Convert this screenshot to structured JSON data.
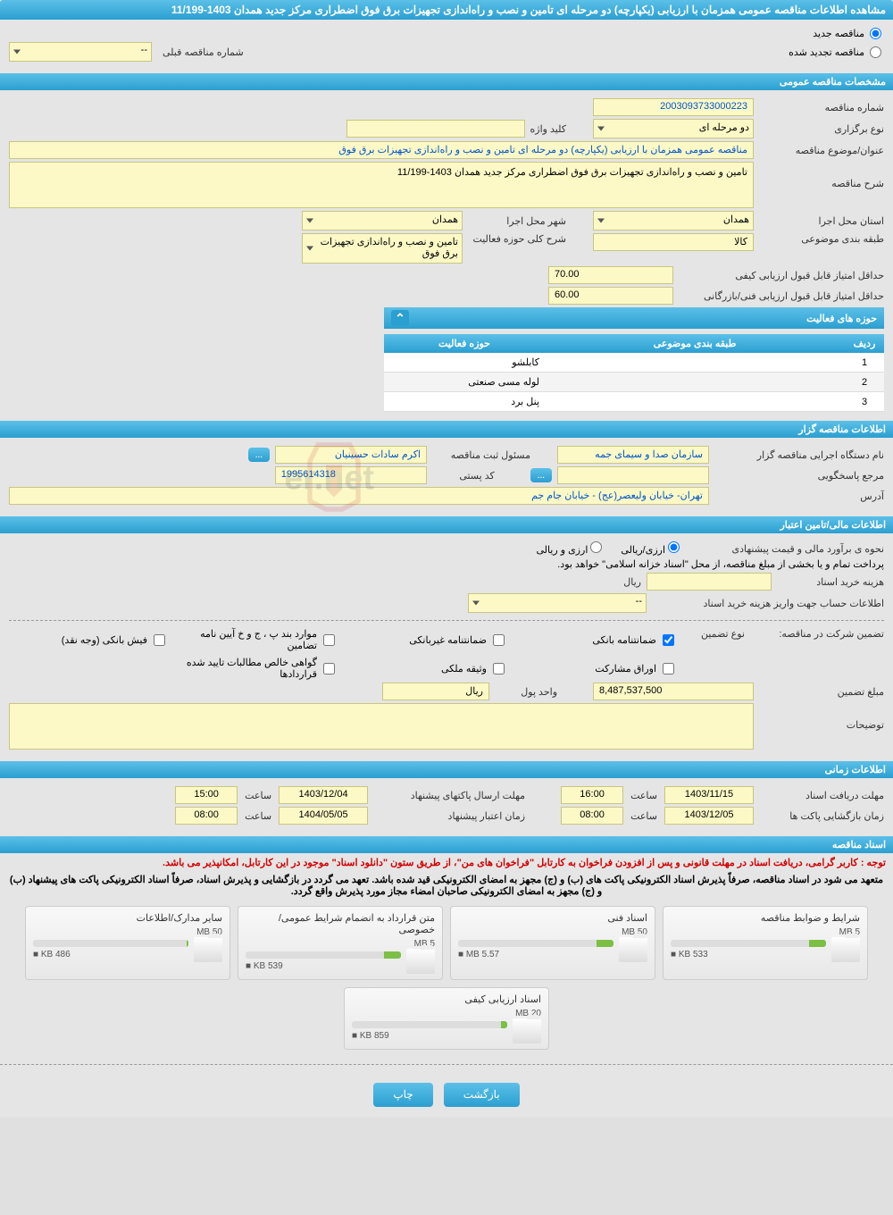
{
  "header": {
    "title": "مشاهده اطلاعات مناقصه عمومی همزمان با ارزیابی (یکپارچه) دو مرحله ای تامین و نصب و راه‌اندازی تجهیزات برق فوق اضطراری مرکز جدید همدان 1403-11/199"
  },
  "tender_type": {
    "new_label": "مناقصه جدید",
    "renewed_label": "مناقصه تجدید شده",
    "prev_number_label": "شماره مناقصه قبلی",
    "prev_number_value": "--"
  },
  "sections": {
    "general": "مشخصات مناقصه عمومی",
    "organizer": "اطلاعات مناقصه گزار",
    "financial": "اطلاعات مالی/تامین اعتبار",
    "timing": "اطلاعات زمانی",
    "documents": "اسناد مناقصه"
  },
  "general": {
    "tender_no_label": "شماره مناقصه",
    "tender_no": "2003093733000223",
    "type_label": "نوع برگزاری",
    "type_value": "دو مرحله ای",
    "keyword_label": "کلید واژه",
    "keyword_value": "",
    "subject_label": "عنوان/موضوع مناقصه",
    "subject_value": "مناقصه عمومی همزمان با ارزیابی (یکپارچه) دو مرحله ای تامین و نصب و راه‌اندازی تجهیزات برق فوق",
    "desc_label": "شرح مناقصه",
    "desc_value": "تامین و نصب و راه‌اندازی تجهیزات برق فوق اضطراری مرکز جدید همدان 1403-11/199",
    "province_label": "استان محل اجرا",
    "province_value": "همدان",
    "city_label": "شهر محل اجرا",
    "city_value": "همدان",
    "category_label": "طبقه بندی موضوعی",
    "category_value": "کالا",
    "activity_desc_label": "شرح کلی حوزه فعالیت",
    "activity_desc_value": "تامین و نصب و راه‌اندازی تجهیزات برق فوق",
    "quality_score_label": "حداقل امتیاز قابل قبول ارزیابی کیفی",
    "quality_score": "70.00",
    "tech_score_label": "حداقل امتیاز قابل قبول ارزیابی فنی/بازرگانی",
    "tech_score": "60.00"
  },
  "activity_table": {
    "title": "حوزه های فعالیت",
    "col_row": "ردیف",
    "col_category": "طبقه بندی موضوعی",
    "col_field": "حوزه فعالیت",
    "rows": [
      {
        "n": "1",
        "cat": "",
        "field": "کابلشو"
      },
      {
        "n": "2",
        "cat": "",
        "field": "لوله مسی صنعتی"
      },
      {
        "n": "3",
        "cat": "",
        "field": "پنل برد"
      }
    ]
  },
  "organizer": {
    "org_label": "نام دستگاه اجرایی مناقصه گزار",
    "org_value": "سازمان صدا و سیمای جمه",
    "manager_label": "مسئول ثبت مناقصه",
    "manager_value": "اکرم سادات حسینیان",
    "responder_label": "مرجع پاسخگویی",
    "responder_value": "",
    "postal_label": "کد پستی",
    "postal_value": "1995614318",
    "address_label": "آدرس",
    "address_value": "تهران- خیابان ولیعصر(عج) - خیابان جام جم",
    "browse": "..."
  },
  "financial": {
    "estimate_label": "نحوه ی برآورد مالی و قیمت پیشنهادی",
    "opt_fx_rial": "ارزی/ریالی",
    "opt_fx_and_rial": "ارزی و ریالی",
    "payment_note": "پرداخت تمام و یا بخشی از مبلغ مناقصه، از محل \"اسناد خزانه اسلامی\" خواهد بود.",
    "doc_cost_label": "هزینه خرید اسناد",
    "doc_cost_unit": "ریال",
    "doc_cost_value": "",
    "account_label": "اطلاعات حساب جهت واریز هزینه خرید اسناد",
    "account_value": "--",
    "guarantee_label": "تضمین شرکت در مناقصه:",
    "guarantee_type_label": "نوع تضمین",
    "checkboxes": [
      {
        "label": "ضمانتنامه بانکی",
        "checked": true
      },
      {
        "label": "ضمانتنامه غیربانکی",
        "checked": false
      },
      {
        "label": "موارد بند پ ، ج و خ آیین نامه تضامین",
        "checked": false
      },
      {
        "label": "فیش بانکی (وجه نقد)",
        "checked": false
      },
      {
        "label": "اوراق مشارکت",
        "checked": false
      },
      {
        "label": "وثیقه ملکی",
        "checked": false
      },
      {
        "label": "گواهی خالص مطالبات تایید شده قراردادها",
        "checked": false
      }
    ],
    "amount_label": "مبلغ تضمین",
    "amount_value": "8,487,537,500",
    "unit_label": "واحد پول",
    "unit_value": "ریال",
    "notes_label": "توضیحات",
    "notes_value": ""
  },
  "timing": {
    "receive_label": "مهلت دریافت اسناد",
    "receive_date": "1403/11/15",
    "receive_time": "16:00",
    "send_label": "مهلت ارسال پاکتهای پیشنهاد",
    "send_date": "1403/12/04",
    "send_time": "15:00",
    "open_label": "زمان بازگشایی پاکت ها",
    "open_date": "1403/12/05",
    "open_time": "08:00",
    "validity_label": "زمان اعتبار پیشنهاد",
    "validity_date": "1404/05/05",
    "validity_time": "08:00",
    "hour_label": "ساعت"
  },
  "documents": {
    "notice1": "توجه : کاربر گرامی، دریافت اسناد در مهلت قانونی و پس از افزودن فراخوان به کارتابل \"فراخوان های من\"، از طریق ستون \"دانلود اسناد\" موجود در این کارتابل، امکانپذیر می باشد.",
    "notice2": "متعهد می شود در اسناد مناقصه، صرفاً پذیرش اسناد الکترونیکی پاکت های (ب) و (ج) مجهز به امضای الکترونیکی قید شده باشد. تعهد می گردد در بازگشایی و پذیرش اسناد، صرفاً اسناد الکترونیکی پاکت های پیشنهاد (ب) و (ج) مجهز به امضای الکترونیکی صاحبان امضاء مجاز مورد پذیرش واقع گردد.",
    "files": [
      {
        "title": "شرایط و ضوابط مناقصه",
        "size": "533 KB",
        "limit": "5 MB",
        "pct": 11
      },
      {
        "title": "اسناد فنی",
        "size": "5.57 MB",
        "limit": "50 MB",
        "pct": 11
      },
      {
        "title": "متن قرارداد به انضمام شرایط عمومی/خصوصی",
        "size": "539 KB",
        "limit": "5 MB",
        "pct": 11
      },
      {
        "title": "سایر مدارک/اطلاعات",
        "size": "486 KB",
        "limit": "50 MB",
        "pct": 1
      },
      {
        "title": "اسناد ارزیابی کیفی",
        "size": "859 KB",
        "limit": "20 MB",
        "pct": 4
      }
    ]
  },
  "footer": {
    "back": "بازگشت",
    "print": "چاپ"
  },
  "colors": {
    "primary": "#2b9fd0",
    "field_bg": "#fcf9c6",
    "notice": "#d20000"
  }
}
